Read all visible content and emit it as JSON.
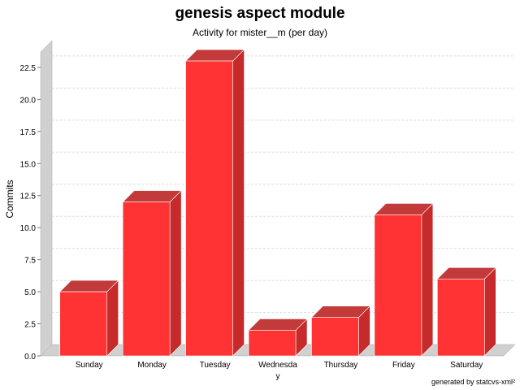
{
  "chart_data": {
    "type": "bar",
    "title": "genesis aspect module",
    "subtitle": "Activity for mister__m (per day)",
    "xlabel": "",
    "ylabel": "Commits",
    "categories": [
      "Sunday",
      "Monday",
      "Tuesday",
      "Wednesday",
      "Thursday",
      "Friday",
      "Saturday"
    ],
    "category_labels": [
      [
        "Sunday"
      ],
      [
        "Monday"
      ],
      [
        "Tuesday"
      ],
      [
        "Wednesda",
        "y"
      ],
      [
        "Thursday"
      ],
      [
        "Friday"
      ],
      [
        "Saturday"
      ]
    ],
    "values": [
      5,
      12,
      23,
      2,
      3,
      11,
      6
    ],
    "ylim": [
      0,
      23.7
    ],
    "yticks": [
      0.0,
      2.5,
      5.0,
      7.5,
      10.0,
      12.5,
      15.0,
      17.5,
      20.0,
      22.5
    ],
    "ytick_labels": [
      "0.0",
      "2.5",
      "5.0",
      "7.5",
      "10.0",
      "12.5",
      "15.0",
      "17.5",
      "20.0",
      "22.5"
    ],
    "grid": true,
    "bar_color": "#ff3333",
    "bar_side_color": "#c62a2a",
    "bar_top_color": "#c33a3a",
    "wall_color": "#d0d0d0"
  },
  "footer": "generated by statcvs-xml²"
}
